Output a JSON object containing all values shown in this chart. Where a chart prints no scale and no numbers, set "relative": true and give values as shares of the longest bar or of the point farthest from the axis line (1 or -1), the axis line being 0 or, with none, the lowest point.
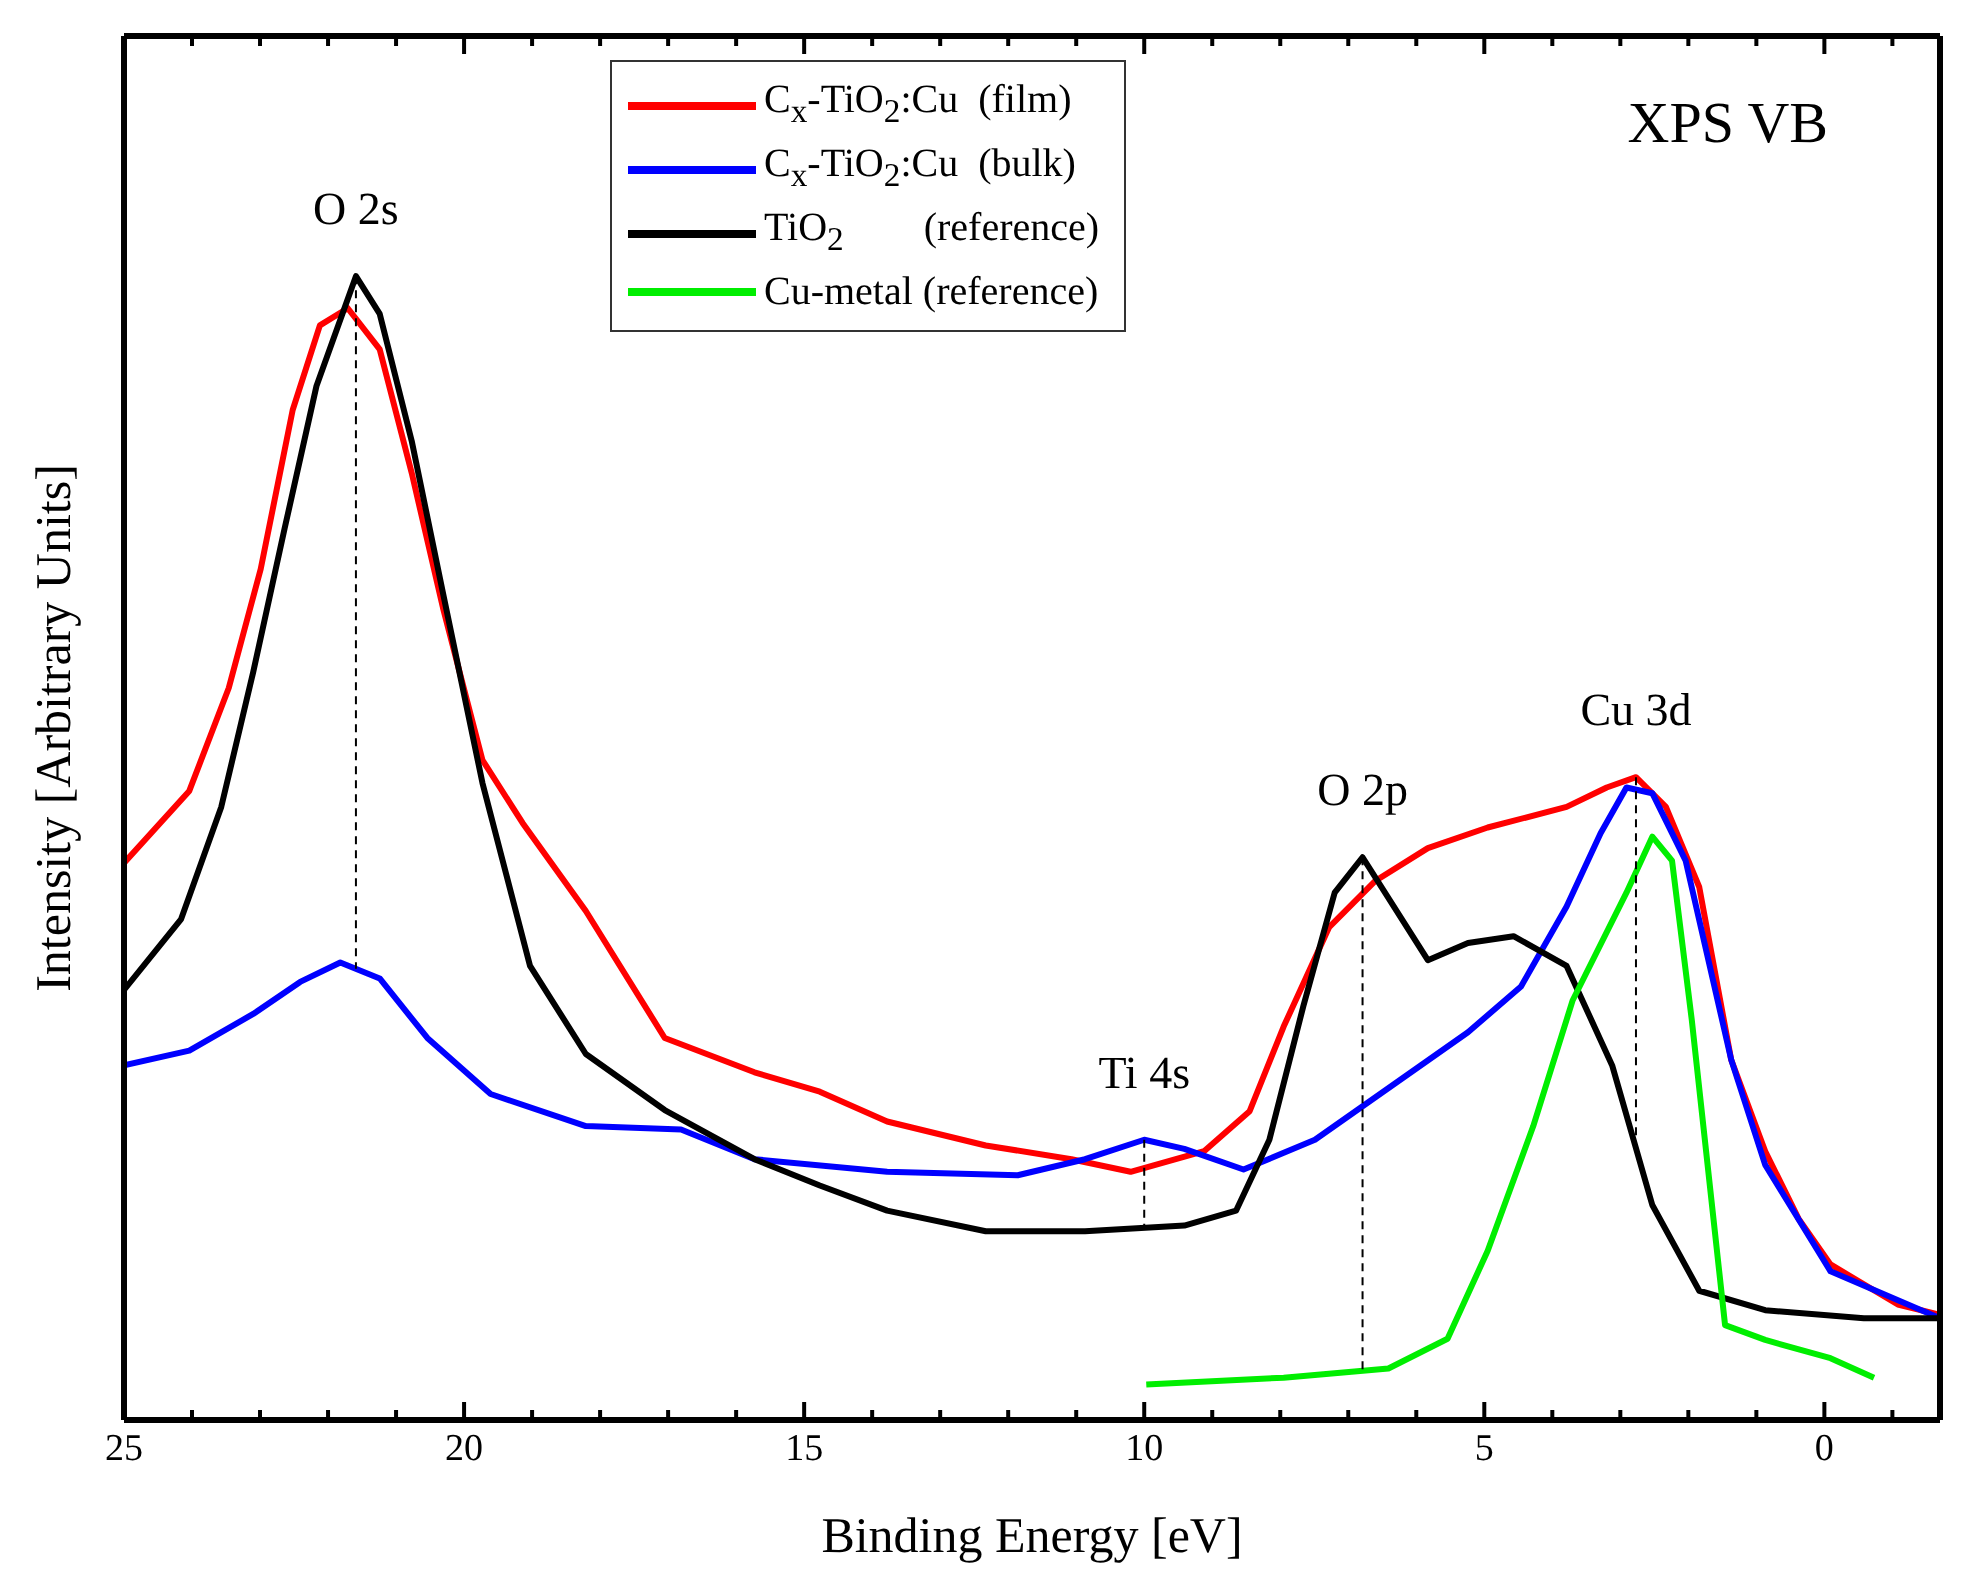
{
  "chart_data": {
    "type": "line",
    "relative": true,
    "xlabel": "Binding Energy [eV]",
    "ylabel": "Intensity [Arbitrary Units]",
    "legend": "top",
    "line_style": "solid",
    "marker": "none",
    "xlim": [
      25,
      -1.7
    ],
    "xticks": [
      25,
      {
        "value": 24,
        "label": null
      },
      {
        "value": 23,
        "label": null
      },
      {
        "value": 22,
        "label": null
      },
      {
        "value": 21,
        "label": null
      },
      20,
      {
        "value": 19,
        "label": null
      },
      {
        "value": 18,
        "label": null
      },
      {
        "value": 17,
        "label": null
      },
      {
        "value": 16,
        "label": null
      },
      15,
      {
        "value": 14,
        "label": null
      },
      {
        "value": 13,
        "label": null
      },
      {
        "value": 12,
        "label": null
      },
      {
        "value": 11,
        "label": null
      },
      10,
      {
        "value": 9,
        "label": null
      },
      {
        "value": 8,
        "label": null
      },
      {
        "value": 7,
        "label": null
      },
      {
        "value": 6,
        "label": null
      },
      5,
      {
        "value": 4,
        "label": null
      },
      {
        "value": 3,
        "label": null
      },
      {
        "value": 2,
        "label": null
      },
      {
        "value": 1,
        "label": null
      },
      0,
      {
        "value": -1,
        "label": null
      }
    ],
    "annotations": [
      "XPS VB",
      {
        "text": "O 2s",
        "x": 21.59,
        "y": 1
      },
      {
        "text": "Ti 4s",
        "x": 10.0,
        "y": 0.245
      },
      {
        "text": "O 2p",
        "x": 6.79,
        "y": 0.492
      },
      {
        "text": "Cu 3d",
        "x": 2.77,
        "y": 0.562
      }
    ],
    "series": [
      {
        "name": "C$_{x}$-TiO$_{2}$:Cu  (film)",
        "color": "#ff0000",
        "x": [
          25,
          24.04,
          23.46,
          22.99,
          22.52,
          22.12,
          21.71,
          21.24,
          20.77,
          20.31,
          19.73,
          19.14,
          18.21,
          17.05,
          15.73,
          14.77,
          13.78,
          12.33,
          11.07,
          10.2,
          9.12,
          8.45,
          7.95,
          7.28,
          6.61,
          5.83,
          4.95,
          3.79,
          3.2,
          2.77,
          2.33,
          1.84,
          1.37,
          0.87,
          0.38,
          -0.09,
          -1.08,
          -1.7
        ],
        "values": [
          0.487,
          0.55,
          0.64,
          0.744,
          0.883,
          0.957,
          0.972,
          0.936,
          0.828,
          0.71,
          0.577,
          0.522,
          0.445,
          0.334,
          0.304,
          0.287,
          0.261,
          0.24,
          0.228,
          0.217,
          0.235,
          0.27,
          0.344,
          0.431,
          0.471,
          0.5,
          0.518,
          0.536,
          0.553,
          0.562,
          0.536,
          0.466,
          0.315,
          0.235,
          0.176,
          0.136,
          0.101,
          0.092
        ]
      },
      {
        "name": "C$_{x}$-TiO$_{2}$:Cu  (bulk)",
        "color": "#0000ff",
        "x": [
          25,
          24.04,
          23.1,
          22.41,
          21.82,
          21.24,
          20.54,
          19.61,
          18.21,
          16.81,
          15.73,
          13.78,
          11.86,
          10.87,
          10.0,
          9.41,
          8.54,
          7.49,
          6.7,
          5.24,
          4.46,
          3.79,
          3.29,
          2.91,
          2.53,
          2.04,
          1.37,
          0.87,
          -0.09,
          -1.7
        ],
        "values": [
          0.31,
          0.323,
          0.355,
          0.383,
          0.4,
          0.386,
          0.334,
          0.285,
          0.257,
          0.254,
          0.228,
          0.217,
          0.214,
          0.228,
          0.245,
          0.237,
          0.219,
          0.245,
          0.278,
          0.339,
          0.379,
          0.449,
          0.513,
          0.553,
          0.548,
          0.489,
          0.315,
          0.223,
          0.13,
          0.089
        ]
      },
      {
        "name": "TiO$_{2}$        (reference)",
        "color": "#000000",
        "x": [
          25,
          24.16,
          23.57,
          23.1,
          22.64,
          22.17,
          21.59,
          21.24,
          20.77,
          20.31,
          19.73,
          19.03,
          18.21,
          17.05,
          15.73,
          14.77,
          13.78,
          12.33,
          10.87,
          9.41,
          8.65,
          8.16,
          7.66,
          7.2,
          6.79,
          5.83,
          5.24,
          4.57,
          3.79,
          3.12,
          2.53,
          1.84,
          0.87,
          -0.58,
          -1.7
        ],
        "values": [
          0.376,
          0.438,
          0.536,
          0.654,
          0.779,
          0.904,
          1,
          0.967,
          0.856,
          0.723,
          0.557,
          0.397,
          0.32,
          0.271,
          0.228,
          0.205,
          0.183,
          0.165,
          0.165,
          0.17,
          0.183,
          0.245,
          0.362,
          0.461,
          0.492,
          0.402,
          0.417,
          0.423,
          0.397,
          0.31,
          0.188,
          0.113,
          0.096,
          0.089,
          0.089
        ]
      },
      {
        "name": "Cu-metal (reference)",
        "color": "#00ee00",
        "x": [
          9.97,
          7.95,
          6.41,
          5.54,
          4.95,
          4.28,
          3.7,
          2.91,
          2.53,
          2.24,
          1.95,
          1.46,
          0.87,
          -0.09,
          -0.73
        ],
        "values": [
          0.031,
          0.037,
          0.045,
          0.071,
          0.148,
          0.257,
          0.367,
          0.461,
          0.51,
          0.489,
          0.35,
          0.083,
          0.07,
          0.054,
          0.037
        ]
      }
    ]
  }
}
